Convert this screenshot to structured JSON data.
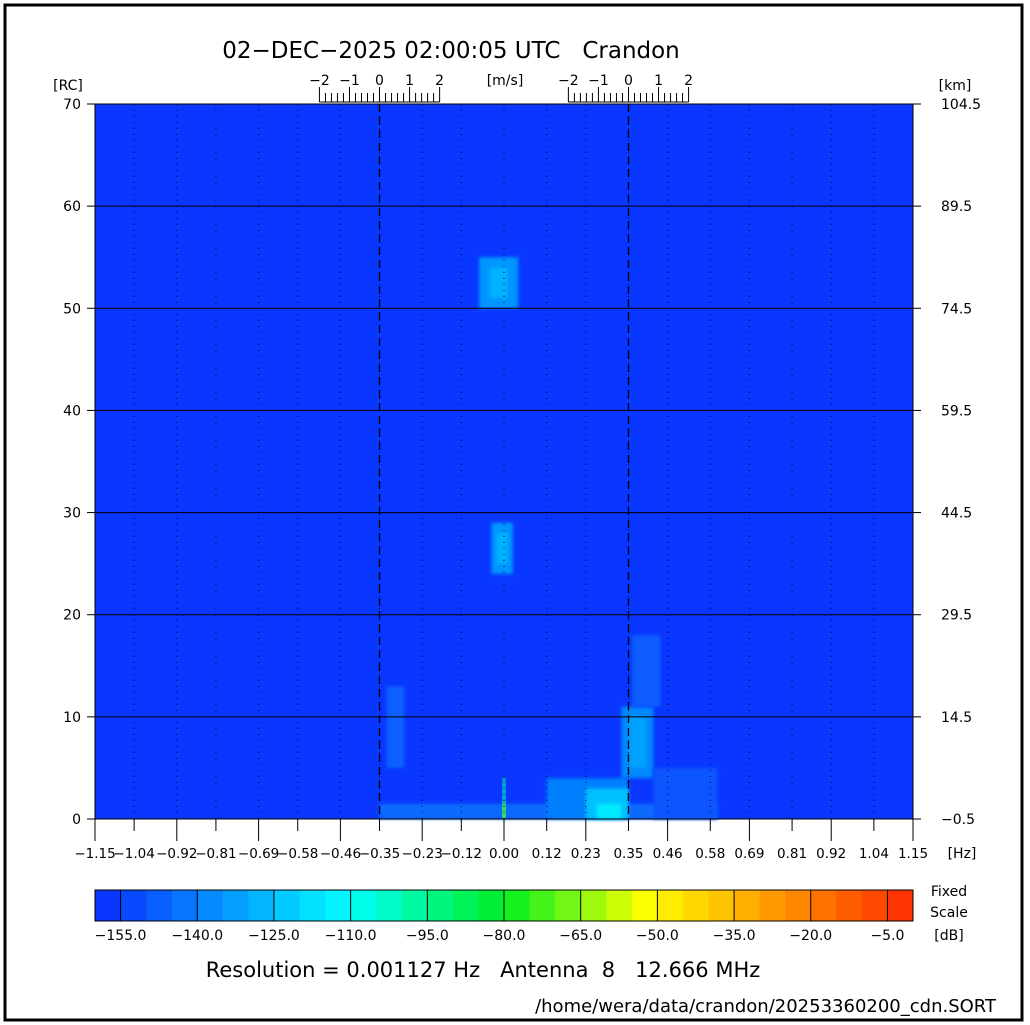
{
  "title": "02−DEC−2025 02:00:05 UTC   Crandon",
  "footer": {
    "resolution": "Resolution = 0.001127 Hz   Antenna  8   12.666 MHz",
    "path": "/home/wera/data/crandon/20253360200_cdn.SORT"
  },
  "chart_data": {
    "type": "heatmap",
    "x_unit": "[Hz]",
    "x_range": [
      -1.15,
      1.15
    ],
    "x_ticks": [
      "-1.15",
      "-1.04",
      "-0.92",
      "-0.81",
      "-0.69",
      "-0.58",
      "-0.46",
      "-0.35",
      "-0.23",
      "-0.12",
      "0.00",
      "0.12",
      "0.23",
      "0.35",
      "0.46",
      "0.58",
      "0.69",
      "0.81",
      "0.92",
      "1.04",
      "1.15"
    ],
    "y_left_unit": "[RC]",
    "y_left_range": [
      0,
      70
    ],
    "y_left_ticks": [
      "0",
      "10",
      "20",
      "30",
      "40",
      "50",
      "60",
      "70"
    ],
    "y_right_unit": "[km]",
    "y_right_ticks": [
      "-0.5",
      "14.5",
      "29.5",
      "44.5",
      "59.5",
      "74.5",
      "89.5",
      "104.5"
    ],
    "velocity_unit": "[m/s]",
    "velocity_scales_centered_at_hz": [
      -0.35,
      0.35
    ],
    "velocity_ticks": [
      "-2",
      "-1",
      "0",
      "1",
      "2"
    ],
    "bragg_lines_hz": [
      -0.35,
      0.35
    ],
    "grid": true,
    "background_db": -157,
    "regions": [
      {
        "hz": [
          -0.35,
          0.6
        ],
        "rc": [
          0,
          1.5
        ],
        "db": -145
      },
      {
        "hz": [
          -0.33,
          -0.28
        ],
        "rc": [
          5,
          13
        ],
        "db": -147
      },
      {
        "hz": [
          -0.07,
          0.04
        ],
        "rc": [
          50,
          55
        ],
        "db": -135
      },
      {
        "hz": [
          -0.04,
          0.01
        ],
        "rc": [
          51,
          54
        ],
        "db": -128
      },
      {
        "hz": [
          -0.035,
          0.025
        ],
        "rc": [
          24,
          29
        ],
        "db": -135
      },
      {
        "hz": [
          -0.02,
          0.01
        ],
        "rc": [
          25,
          28
        ],
        "db": -128
      },
      {
        "hz": [
          0.12,
          0.35
        ],
        "rc": [
          0,
          4
        ],
        "db": -140
      },
      {
        "hz": [
          0.23,
          0.35
        ],
        "rc": [
          0,
          3
        ],
        "db": -125
      },
      {
        "hz": [
          0.26,
          0.33
        ],
        "rc": [
          0,
          1.5
        ],
        "db": -115
      },
      {
        "hz": [
          0.33,
          0.42
        ],
        "rc": [
          4,
          11
        ],
        "db": -138
      },
      {
        "hz": [
          0.36,
          0.44
        ],
        "rc": [
          11,
          18
        ],
        "db": -148
      },
      {
        "hz": [
          0.35,
          0.4
        ],
        "rc": [
          5,
          10
        ],
        "db": -132
      },
      {
        "hz": [
          0.42,
          0.6
        ],
        "rc": [
          0,
          5
        ],
        "db": -150
      },
      {
        "hz": [
          -0.004,
          0.004
        ],
        "rc": [
          0,
          4
        ],
        "db": -100
      },
      {
        "hz": [
          -0.004,
          0.004
        ],
        "rc": [
          0,
          1.5
        ],
        "db": -70
      }
    ],
    "colorbar": {
      "range": [
        -160,
        0
      ],
      "step": 5,
      "ticks": [
        "-155.0",
        "-140.0",
        "-125.0",
        "-110.0",
        "-95.0",
        "-80.0",
        "-65.0",
        "-50.0",
        "-35.0",
        "-20.0",
        "-5.0"
      ],
      "label_1": "Fixed",
      "label_2": "Scale",
      "unit": "[dB]",
      "color_stops": [
        {
          "db": -160,
          "color": "#0a2aff"
        },
        {
          "db": -110,
          "color": "#00ffff"
        },
        {
          "db": -80,
          "color": "#00ee22"
        },
        {
          "db": -52,
          "color": "#ffff00"
        },
        {
          "db": 0,
          "color": "#ff2a00"
        }
      ]
    }
  }
}
